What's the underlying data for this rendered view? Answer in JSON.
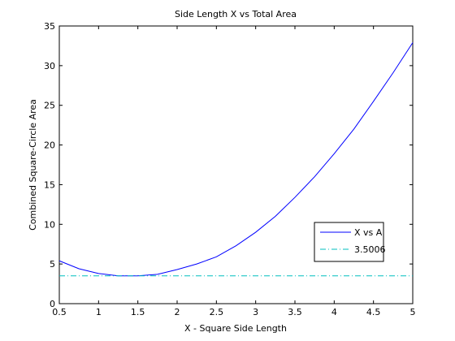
{
  "chart_data": {
    "type": "line",
    "title": "Side Length X vs Total Area",
    "xlabel": "X - Square Side Length",
    "ylabel": "Combined Square-Circle Area",
    "xlim": [
      0.5,
      5
    ],
    "ylim": [
      0,
      35
    ],
    "xticks": [
      0.5,
      1,
      1.5,
      2,
      2.5,
      3,
      3.5,
      4,
      4.5,
      5
    ],
    "yticks": [
      0,
      5,
      10,
      15,
      20,
      25,
      30,
      35
    ],
    "xtick_labels": [
      "0.5",
      "1",
      "1.5",
      "2",
      "2.5",
      "3",
      "3.5",
      "4",
      "4.5",
      "5"
    ],
    "ytick_labels": [
      "0",
      "5",
      "10",
      "15",
      "20",
      "25",
      "30",
      "35"
    ],
    "grid": false,
    "legend_position": "lower-right",
    "series": [
      {
        "name": "X vs A",
        "color": "#0000ff",
        "style": "solid",
        "x": [
          0.5,
          0.75,
          1.0,
          1.25,
          1.5,
          1.75,
          2.0,
          2.25,
          2.5,
          2.75,
          3.0,
          3.25,
          3.5,
          3.75,
          4.0,
          4.25,
          4.5,
          4.75,
          5.0
        ],
        "y": [
          5.4,
          4.4,
          3.8,
          3.5,
          3.5,
          3.7,
          4.3,
          5.0,
          5.9,
          7.3,
          9.0,
          11.0,
          13.4,
          16.0,
          18.9,
          22.0,
          25.5,
          29.1,
          32.9
        ]
      },
      {
        "name": "3.5006",
        "color": "#00bfbf",
        "style": "dash-dot",
        "x": [
          0.5,
          5
        ],
        "y": [
          3.5006,
          3.5006
        ]
      }
    ]
  }
}
